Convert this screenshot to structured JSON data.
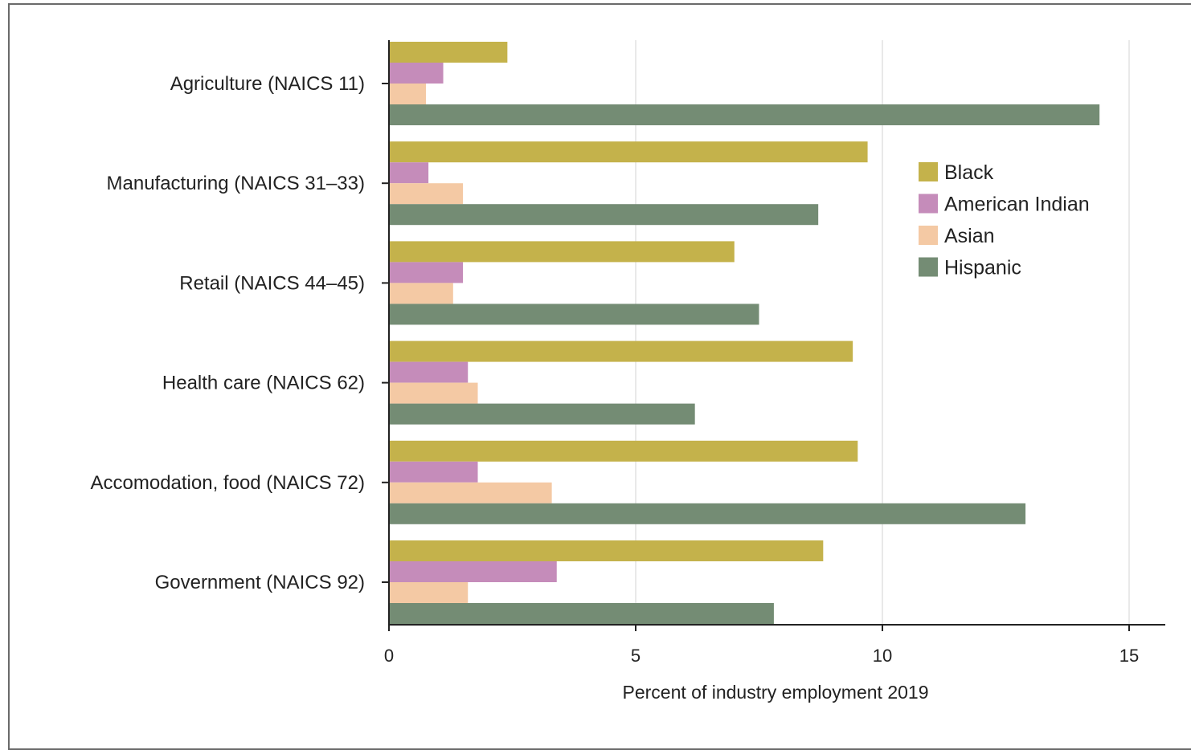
{
  "chart_data": {
    "type": "bar",
    "orientation": "horizontal",
    "categories": [
      "Agriculture (NAICS 11)",
      "Manufacturing (NAICS 31–33)",
      "Retail (NAICS 44–45)",
      "Health care (NAICS 62)",
      "Accomodation, food (NAICS 72)",
      "Government (NAICS 92)"
    ],
    "series": [
      {
        "name": "Black",
        "color": "#c4b24b",
        "values": [
          2.4,
          9.7,
          7.0,
          9.4,
          9.5,
          8.8
        ]
      },
      {
        "name": "American Indian",
        "color": "#c58cba",
        "values": [
          1.1,
          0.8,
          1.5,
          1.6,
          1.8,
          3.4
        ]
      },
      {
        "name": "Asian",
        "color": "#f4c9a4",
        "values": [
          0.75,
          1.5,
          1.3,
          1.8,
          3.3,
          1.6
        ]
      },
      {
        "name": "Hispanic",
        "color": "#748c74",
        "values": [
          14.4,
          8.7,
          7.5,
          6.2,
          12.9,
          7.8
        ]
      }
    ],
    "xlabel": "Percent of industry employment 2019",
    "ylabel": "",
    "xlim": [
      0,
      15.7
    ],
    "xticks": [
      0,
      5,
      10,
      15
    ],
    "grid": true,
    "legend_position": "top-right"
  }
}
